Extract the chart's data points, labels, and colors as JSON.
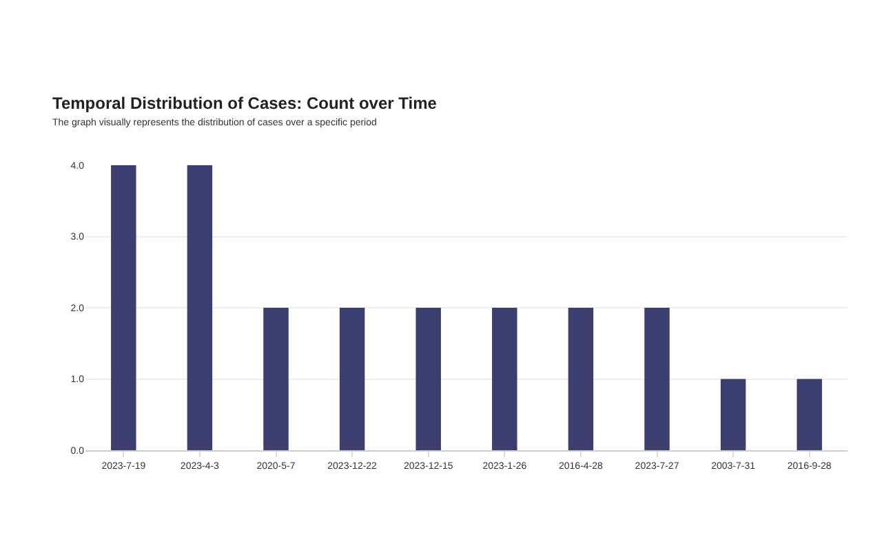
{
  "chart_data": {
    "type": "bar",
    "title": "Temporal Distribution of Cases: Count over Time",
    "subtitle": "The graph visually represents the distribution of cases over a specific period",
    "categories": [
      "2023-7-19",
      "2023-4-3",
      "2020-5-7",
      "2023-12-22",
      "2023-12-15",
      "2023-1-26",
      "2016-4-28",
      "2023-7-27",
      "2003-7-31",
      "2016-9-28"
    ],
    "values": [
      4,
      4,
      2,
      2,
      2,
      2,
      2,
      2,
      1,
      1
    ],
    "color": "#3b3f70",
    "ylim": [
      0,
      4
    ],
    "yticks": [
      {
        "value": 0,
        "label": "0.0"
      },
      {
        "value": 1,
        "label": "1.0"
      },
      {
        "value": 2,
        "label": "2.0"
      },
      {
        "value": 3,
        "label": "3.0"
      },
      {
        "value": 4,
        "label": "4.0"
      }
    ],
    "grid": "y",
    "legend": false
  }
}
